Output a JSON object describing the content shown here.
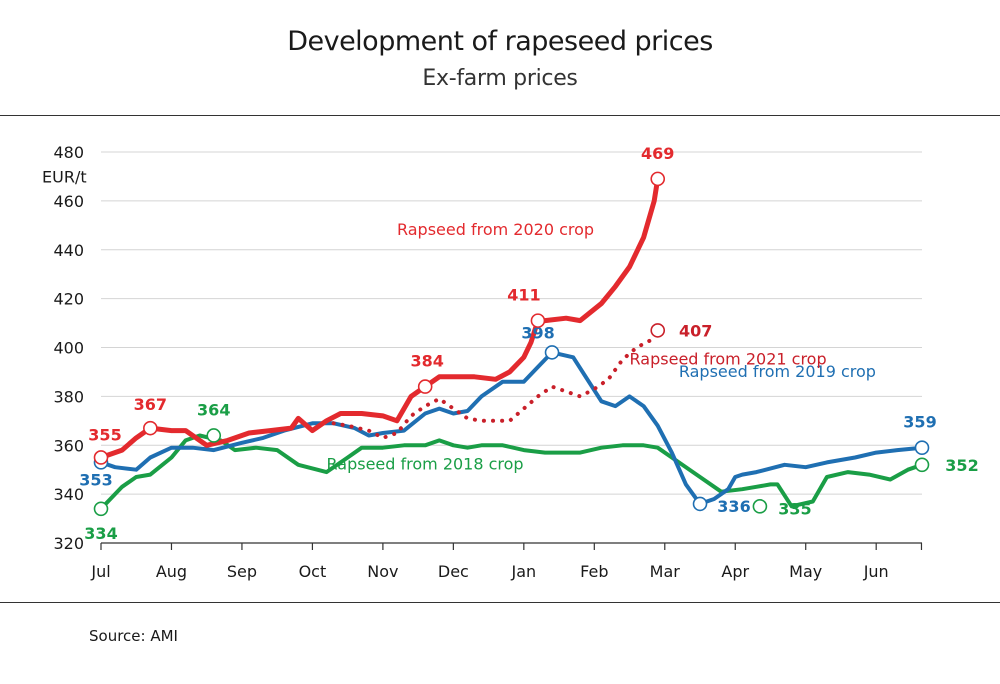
{
  "chart_data": {
    "type": "line",
    "title": "Development of rapeseed prices",
    "subtitle": "Ex-farm prices",
    "ylabel": "EUR/t",
    "xlabel": "",
    "source": "Source: AMI",
    "categories": [
      "Jul",
      "Aug",
      "Sep",
      "Oct",
      "Nov",
      "Dec",
      "Jan",
      "Feb",
      "Mar",
      "Apr",
      "May",
      "Jun"
    ],
    "x_domain": [
      0,
      11.65
    ],
    "ylim": [
      320,
      480
    ],
    "yticks": [
      320,
      340,
      360,
      380,
      400,
      420,
      440,
      460,
      480
    ],
    "grid": true,
    "series": [
      {
        "name": "Rapseed from 2018 crop",
        "color": "#1a9e46",
        "style": "solid",
        "x": [
          0,
          0.3,
          0.5,
          0.7,
          1.0,
          1.2,
          1.4,
          1.7,
          1.9,
          2.2,
          2.5,
          2.8,
          3.2,
          3.5,
          3.7,
          4.0,
          4.3,
          4.6,
          4.8,
          5.0,
          5.2,
          5.4,
          5.7,
          6.0,
          6.3,
          6.6,
          6.8,
          7.1,
          7.4,
          7.7,
          7.9,
          8.2,
          8.5,
          8.8,
          9.1,
          9.3,
          9.5,
          9.6,
          9.8,
          10.1,
          10.3,
          10.6,
          10.9,
          11.2,
          11.45,
          11.65
        ],
        "y": [
          334,
          343,
          347,
          348,
          355,
          362,
          364,
          362,
          358,
          359,
          358,
          352,
          349,
          355,
          359,
          359,
          360,
          360,
          362,
          360,
          359,
          360,
          360,
          358,
          357,
          357,
          357,
          359,
          360,
          360,
          359,
          353,
          347,
          341,
          342,
          343,
          344,
          344,
          335,
          337,
          347,
          349,
          348,
          346,
          350,
          352
        ],
        "labels": [
          {
            "x": 0,
            "y": 334,
            "text": "334"
          },
          {
            "x": 1.6,
            "y": 364,
            "text": "364"
          },
          {
            "x": 9.35,
            "y": 335,
            "text": "335"
          },
          {
            "x": 11.65,
            "y": 352,
            "text": "352"
          }
        ],
        "series_label": {
          "x": 3.2,
          "y": 350,
          "text": "Rapseed from 2018 crop"
        }
      },
      {
        "name": "Rapseed from 2019 crop",
        "color": "#1f6fb2",
        "style": "solid",
        "x": [
          0,
          0.2,
          0.5,
          0.7,
          1.0,
          1.3,
          1.6,
          2.0,
          2.3,
          2.6,
          3.0,
          3.3,
          3.6,
          3.8,
          4.0,
          4.3,
          4.6,
          4.8,
          5.0,
          5.2,
          5.4,
          5.7,
          6.0,
          6.2,
          6.4,
          6.7,
          6.9,
          7.1,
          7.3,
          7.5,
          7.7,
          7.9,
          8.1,
          8.3,
          8.5,
          8.7,
          8.9,
          9.0,
          9.1,
          9.3,
          9.7,
          10.0,
          10.3,
          10.7,
          11.0,
          11.3,
          11.65
        ],
        "y": [
          353,
          351,
          350,
          355,
          359,
          359,
          358,
          361,
          363,
          366,
          369,
          369,
          367,
          364,
          365,
          366,
          373,
          375,
          373,
          374,
          380,
          386,
          386,
          392,
          398,
          396,
          387,
          378,
          376,
          380,
          376,
          368,
          357,
          344,
          336,
          338,
          342,
          347,
          348,
          349,
          352,
          351,
          353,
          355,
          357,
          358,
          359
        ],
        "labels": [
          {
            "x": 0,
            "y": 353,
            "text": "353"
          },
          {
            "x": 6.4,
            "y": 398,
            "text": "398"
          },
          {
            "x": 8.5,
            "y": 336,
            "text": "336"
          },
          {
            "x": 11.65,
            "y": 359,
            "text": "359"
          }
        ],
        "series_label": {
          "x": 8.2,
          "y": 388,
          "text": "Rapseed from 2019 crop"
        }
      },
      {
        "name": "Rapseed from 2020 crop",
        "color": "#e32a2e",
        "style": "solid",
        "x": [
          0,
          0.3,
          0.5,
          0.7,
          1.0,
          1.2,
          1.5,
          1.8,
          2.1,
          2.4,
          2.7,
          2.8,
          3.0,
          3.2,
          3.4,
          3.7,
          4.0,
          4.2,
          4.4,
          4.6,
          4.8,
          5.0,
          5.3,
          5.6,
          5.8,
          6.0,
          6.1,
          6.2,
          6.3,
          6.6,
          6.8,
          7.1,
          7.3,
          7.5,
          7.7,
          7.85,
          7.9
        ],
        "y": [
          355,
          358,
          363,
          367,
          366,
          366,
          360,
          362,
          365,
          366,
          367,
          371,
          366,
          370,
          373,
          373,
          372,
          370,
          380,
          384,
          388,
          388,
          388,
          387,
          390,
          396,
          402,
          411,
          411,
          412,
          411,
          418,
          425,
          433,
          445,
          460,
          469
        ],
        "labels": [
          {
            "x": 0,
            "y": 355,
            "text": "355"
          },
          {
            "x": 0.7,
            "y": 367,
            "text": "367"
          },
          {
            "x": 4.6,
            "y": 384,
            "text": "384"
          },
          {
            "x": 6.2,
            "y": 411,
            "text": "411"
          },
          {
            "x": 7.9,
            "y": 469,
            "text": "469"
          }
        ],
        "series_label": {
          "x": 4.2,
          "y": 446,
          "text": "Rapseed from 2020 crop"
        }
      },
      {
        "name": "Rapseed from 2021 crop",
        "color": "#c9202a",
        "style": "dotted",
        "x": [
          3.3,
          3.5,
          3.8,
          4.0,
          4.2,
          4.4,
          4.6,
          4.8,
          5.0,
          5.2,
          5.4,
          5.6,
          5.8,
          6.0,
          6.2,
          6.4,
          6.6,
          6.8,
          7.0,
          7.2,
          7.4,
          7.6,
          7.8,
          7.9
        ],
        "y": [
          369,
          368,
          366,
          363,
          365,
          372,
          376,
          379,
          375,
          371,
          370,
          370,
          370,
          375,
          380,
          384,
          382,
          380,
          383,
          387,
          395,
          400,
          403,
          407
        ],
        "labels": [
          {
            "x": 7.9,
            "y": 407,
            "text": "407"
          }
        ],
        "series_label": {
          "x": 7.5,
          "y": 393,
          "text": "Rapseed from 2021 crop"
        }
      }
    ]
  }
}
